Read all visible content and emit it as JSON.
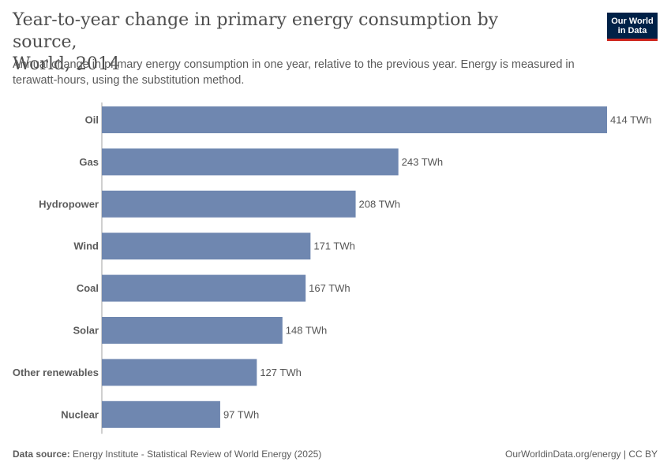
{
  "header": {
    "title": "Year-to-year change in primary energy consumption by source,\nWorld, 2014",
    "subtitle": "Annual change in primary energy consumption in one year, relative to the previous year. Energy is measured in terawatt-hours, using the substitution method.",
    "logo_text": "Our World\nin Data"
  },
  "chart_data": {
    "type": "bar",
    "orientation": "horizontal",
    "categories": [
      "Oil",
      "Gas",
      "Hydropower",
      "Wind",
      "Coal",
      "Solar",
      "Other renewables",
      "Nuclear"
    ],
    "values": [
      414,
      243,
      208,
      171,
      167,
      148,
      127,
      97
    ],
    "value_labels": [
      "414 TWh",
      "243 TWh",
      "208 TWh",
      "171 TWh",
      "167 TWh",
      "148 TWh",
      "127 TWh",
      "97 TWh"
    ],
    "unit": "TWh",
    "xlim": [
      0,
      414
    ],
    "bar_color": "#6f87b0",
    "axis_color": "#a0a0a0",
    "grid": false
  },
  "footer": {
    "source_label": "Data source:",
    "source_text": "Energy Institute - Statistical Review of World Energy (2025)",
    "attribution": "OurWorldinData.org/energy | CC BY"
  }
}
